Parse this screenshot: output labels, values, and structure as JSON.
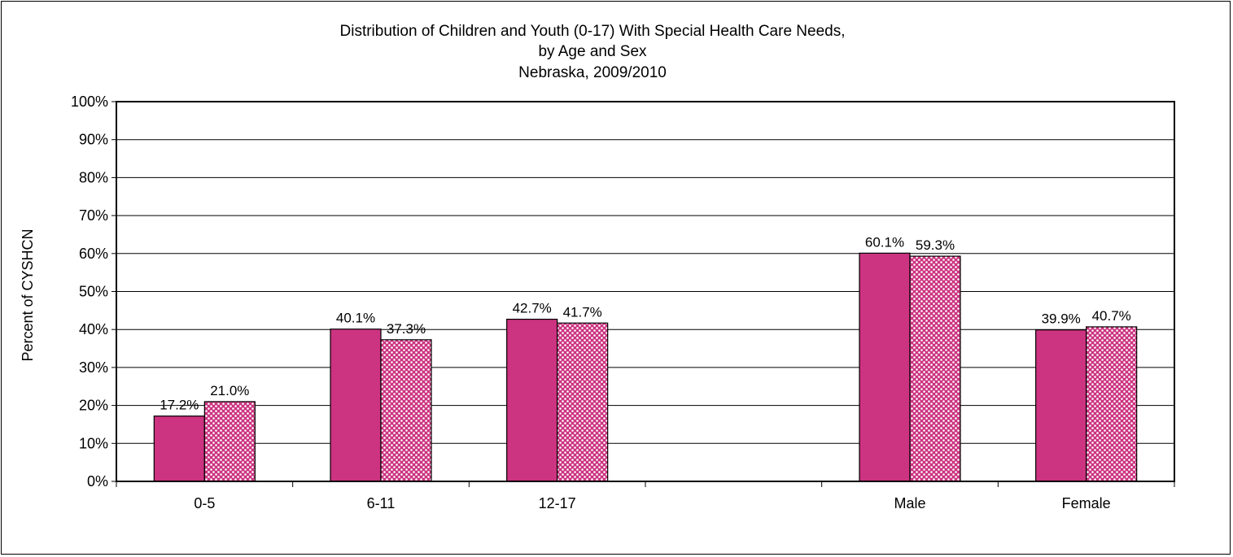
{
  "chart_data": {
    "type": "bar",
    "title_lines": [
      "Distribution of Children and Youth (0-17) With Special Health Care Needs,",
      "by Age and Sex",
      "Nebraska, 2009/2010"
    ],
    "xlabel": "",
    "ylabel": "Percent of CYSHCN",
    "ylim": [
      0,
      100
    ],
    "y_ticks": [
      "0%",
      "10%",
      "20%",
      "30%",
      "40%",
      "50%",
      "60%",
      "70%",
      "80%",
      "90%",
      "100%"
    ],
    "grid": true,
    "legend": "none",
    "categories": [
      "0-5",
      "6-11",
      "12-17",
      "",
      "Male",
      "Female"
    ],
    "series": [
      {
        "color": "#cc3380",
        "pattern": "solid",
        "values": [
          17.2,
          40.1,
          42.7,
          null,
          60.1,
          39.9
        ],
        "labels": [
          "17.2%",
          "40.1%",
          "42.7%",
          "",
          "60.1%",
          "39.9%"
        ]
      },
      {
        "color": "#cc3380",
        "pattern": "dotted",
        "values": [
          21.0,
          37.3,
          41.7,
          null,
          59.3,
          40.7
        ],
        "labels": [
          "21.0%",
          "37.3%",
          "41.7%",
          "",
          "59.3%",
          "40.7%"
        ]
      }
    ]
  }
}
